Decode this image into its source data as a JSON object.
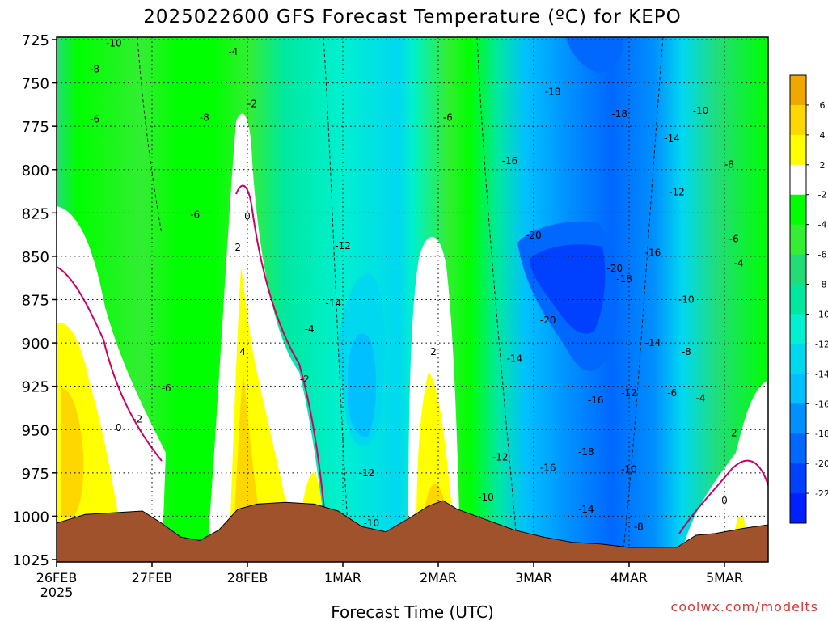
{
  "chart_data": {
    "type": "heatmap",
    "title": "2025022600 GFS Forecast Temperature (ºC) for KEPO",
    "xlabel": "Forecast Time (UTC)",
    "ylabel": "",
    "credit": "coolwx.com/modelts",
    "x_ticks": [
      "26FEB",
      "27FEB",
      "28FEB",
      "1MAR",
      "2MAR",
      "3MAR",
      "4MAR",
      "5MAR"
    ],
    "x_tick_year": "2025",
    "x_start_date": "26FEB 2025 00Z",
    "x_step_hours": 24,
    "y_ticks": [
      725,
      750,
      775,
      800,
      825,
      850,
      875,
      900,
      925,
      950,
      975,
      1000,
      1025
    ],
    "ylim": [
      725,
      1025
    ],
    "y_axis": "pressure (hPa), inverted, 725 at top",
    "colorbar": {
      "labels": [
        "6",
        "4",
        "2",
        "-2",
        "-4",
        "-6",
        "-8",
        "-10",
        "-12",
        "-14",
        "-16",
        "-18",
        "-20",
        "-22"
      ],
      "colors": [
        "#f0a800",
        "#ffd700",
        "#ffff00",
        "#ffffff",
        "#00ff00",
        "#33ee33",
        "#22dd77",
        "#00e8a0",
        "#00f0d0",
        "#00d8f0",
        "#00c0ff",
        "#0090ff",
        "#0068ff",
        "#0040ff",
        "#0020ff"
      ]
    },
    "contour_labels": [
      {
        "text": "-10",
        "t": 0.6,
        "p": 727
      },
      {
        "text": "-4",
        "t": 1.85,
        "p": 732
      },
      {
        "text": "-8",
        "t": 0.4,
        "p": 742
      },
      {
        "text": "-2",
        "t": 2.05,
        "p": 762
      },
      {
        "text": "-6",
        "t": 0.4,
        "p": 771
      },
      {
        "text": "-8",
        "t": 1.55,
        "p": 770
      },
      {
        "text": "-18",
        "t": 5.2,
        "p": 755
      },
      {
        "text": "-18",
        "t": 5.9,
        "p": 768
      },
      {
        "text": "-6",
        "t": 4.1,
        "p": 770
      },
      {
        "text": "-10",
        "t": 6.75,
        "p": 766
      },
      {
        "text": "-14",
        "t": 6.45,
        "p": 782
      },
      {
        "text": "-16",
        "t": 4.75,
        "p": 795
      },
      {
        "text": "-8",
        "t": 7.05,
        "p": 797
      },
      {
        "text": "-12",
        "t": 6.5,
        "p": 813
      },
      {
        "text": "-6",
        "t": 1.45,
        "p": 826
      },
      {
        "text": "0",
        "t": 2.0,
        "p": 827
      },
      {
        "text": "-20",
        "t": 5.0,
        "p": 838
      },
      {
        "text": "-12",
        "t": 3.0,
        "p": 844
      },
      {
        "text": "-6",
        "t": 7.1,
        "p": 840
      },
      {
        "text": "2",
        "t": 1.9,
        "p": 845
      },
      {
        "text": "-16",
        "t": 6.25,
        "p": 848
      },
      {
        "text": "-4",
        "t": 7.15,
        "p": 854
      },
      {
        "text": "-20",
        "t": 5.85,
        "p": 857
      },
      {
        "text": "-18",
        "t": 5.95,
        "p": 863
      },
      {
        "text": "-14",
        "t": 2.9,
        "p": 877
      },
      {
        "text": "-10",
        "t": 6.6,
        "p": 875
      },
      {
        "text": "-20",
        "t": 5.15,
        "p": 887
      },
      {
        "text": "-4",
        "t": 2.65,
        "p": 892
      },
      {
        "text": "4",
        "t": 1.95,
        "p": 905
      },
      {
        "text": "2",
        "t": 3.95,
        "p": 905
      },
      {
        "text": "-14",
        "t": 6.25,
        "p": 900
      },
      {
        "text": "-8",
        "t": 6.6,
        "p": 905
      },
      {
        "text": "-14",
        "t": 4.8,
        "p": 909
      },
      {
        "text": "-2",
        "t": 2.6,
        "p": 921
      },
      {
        "text": "-6",
        "t": 1.15,
        "p": 926
      },
      {
        "text": "-12",
        "t": 6.0,
        "p": 929
      },
      {
        "text": "-6",
        "t": 6.45,
        "p": 929
      },
      {
        "text": "-4",
        "t": 6.75,
        "p": 932
      },
      {
        "text": "-16",
        "t": 5.65,
        "p": 933
      },
      {
        "text": "-2",
        "t": 0.85,
        "p": 944
      },
      {
        "text": "0",
        "t": 0.65,
        "p": 949
      },
      {
        "text": "2",
        "t": 7.1,
        "p": 952
      },
      {
        "text": "-12",
        "t": 4.65,
        "p": 966
      },
      {
        "text": "-18",
        "t": 5.55,
        "p": 963
      },
      {
        "text": "-16",
        "t": 5.15,
        "p": 972
      },
      {
        "text": "-12",
        "t": 3.25,
        "p": 975
      },
      {
        "text": "-10",
        "t": 6.0,
        "p": 973
      },
      {
        "text": "-10",
        "t": 4.5,
        "p": 989
      },
      {
        "text": "0",
        "t": 7.0,
        "p": 991
      },
      {
        "text": "-14",
        "t": 5.55,
        "p": 996
      },
      {
        "text": "-10",
        "t": 3.3,
        "p": 1004
      },
      {
        "text": "-8",
        "t": 6.1,
        "p": 1006
      }
    ],
    "surface_pressure": {
      "t": [
        0.0,
        0.3,
        0.6,
        0.9,
        1.1,
        1.3,
        1.5,
        1.7,
        1.9,
        2.1,
        2.4,
        2.7,
        2.95,
        3.2,
        3.45,
        3.7,
        3.9,
        4.05,
        4.2,
        4.5,
        4.8,
        5.1,
        5.4,
        5.7,
        6.0,
        6.3,
        6.5,
        6.7,
        6.9,
        7.2,
        7.45,
        7.5
      ],
      "hPa": [
        1004,
        999,
        998,
        997,
        1004,
        1012,
        1014,
        1008,
        996,
        993,
        992,
        993,
        997,
        1006,
        1009,
        1001,
        994,
        991,
        996,
        1002,
        1008,
        1012,
        1015,
        1016,
        1018,
        1018,
        1018,
        1011,
        1010,
        1007,
        1005,
        1005
      ]
    }
  }
}
